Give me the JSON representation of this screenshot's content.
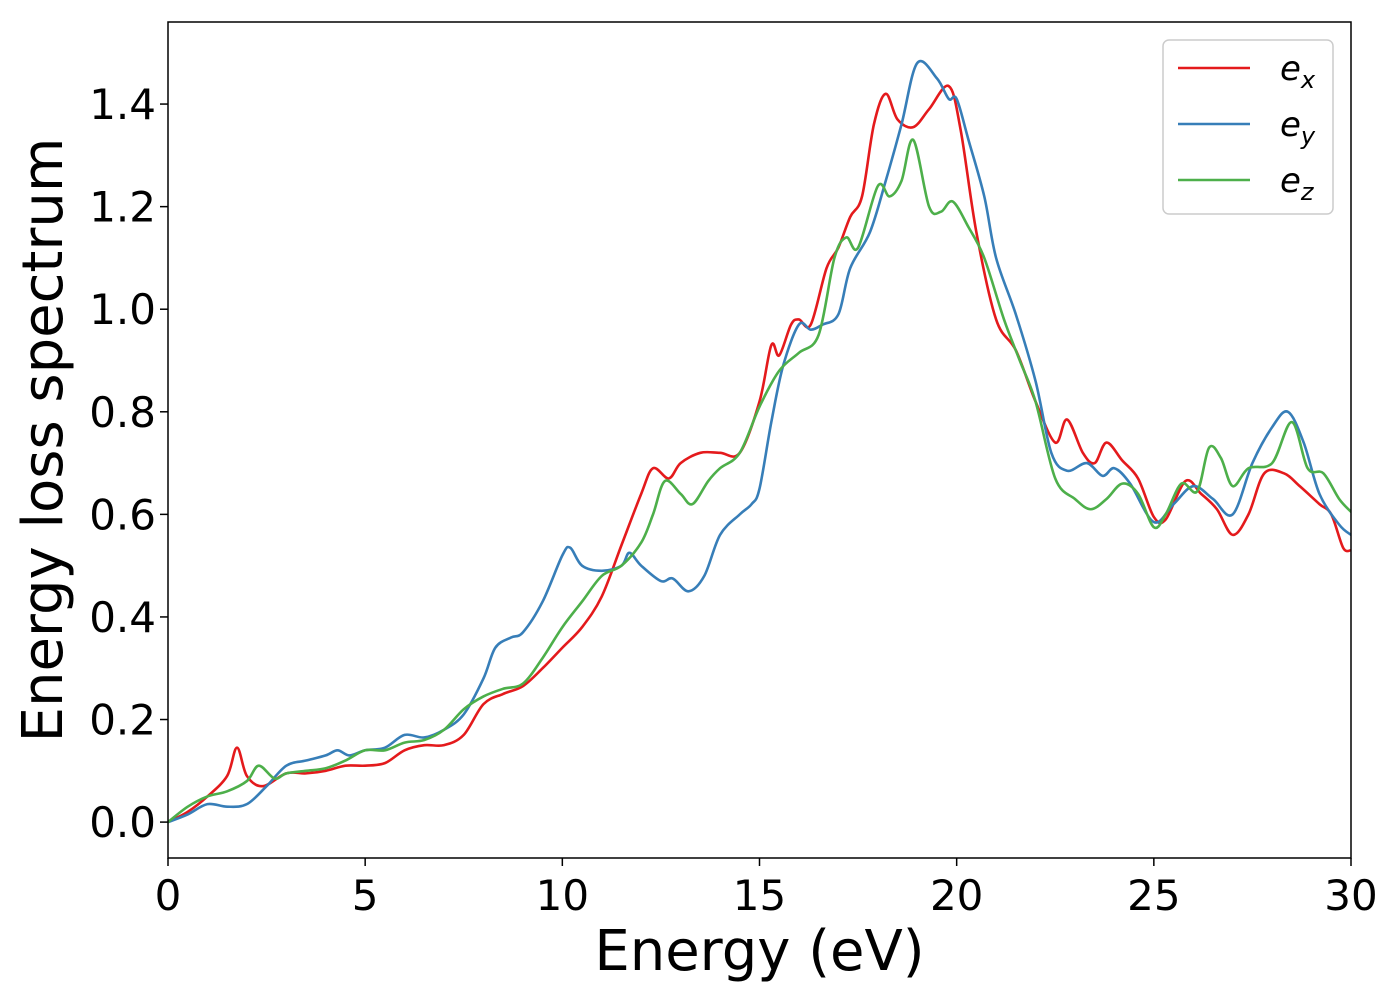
{
  "chart_data": {
    "type": "line",
    "title": "",
    "xlabel": "Energy (eV)",
    "ylabel": "Energy loss spectrum",
    "xlim": [
      0,
      30
    ],
    "ylim": [
      -0.07,
      1.56
    ],
    "xticks": [
      0,
      5,
      10,
      15,
      20,
      25,
      30
    ],
    "yticks": [
      0.0,
      0.2,
      0.4,
      0.6,
      0.8,
      1.0,
      1.2,
      1.4
    ],
    "xtick_labels": [
      "0",
      "5",
      "10",
      "15",
      "20",
      "25",
      "30"
    ],
    "ytick_labels": [
      "0.0",
      "0.2",
      "0.4",
      "0.6",
      "0.8",
      "1.0",
      "1.2",
      "1.4"
    ],
    "grid": false,
    "legend_position": "top-right",
    "series": [
      {
        "name": "e_x",
        "base": "e",
        "sub": "x",
        "color": "#e41a1c",
        "points": [
          [
            0,
            0
          ],
          [
            0.5,
            0.02
          ],
          [
            1,
            0.05
          ],
          [
            1.5,
            0.09
          ],
          [
            1.75,
            0.145
          ],
          [
            2,
            0.09
          ],
          [
            2.4,
            0.07
          ],
          [
            3,
            0.095
          ],
          [
            3.5,
            0.095
          ],
          [
            4,
            0.1
          ],
          [
            4.5,
            0.11
          ],
          [
            5,
            0.11
          ],
          [
            5.5,
            0.115
          ],
          [
            6,
            0.14
          ],
          [
            6.5,
            0.15
          ],
          [
            7,
            0.15
          ],
          [
            7.5,
            0.17
          ],
          [
            8,
            0.23
          ],
          [
            8.5,
            0.25
          ],
          [
            9,
            0.265
          ],
          [
            9.5,
            0.3
          ],
          [
            10,
            0.34
          ],
          [
            10.5,
            0.38
          ],
          [
            11,
            0.44
          ],
          [
            11.5,
            0.54
          ],
          [
            12,
            0.64
          ],
          [
            12.3,
            0.69
          ],
          [
            12.7,
            0.67
          ],
          [
            13,
            0.7
          ],
          [
            13.5,
            0.72
          ],
          [
            14,
            0.72
          ],
          [
            14.5,
            0.72
          ],
          [
            15,
            0.82
          ],
          [
            15.3,
            0.93
          ],
          [
            15.5,
            0.91
          ],
          [
            15.8,
            0.97
          ],
          [
            16,
            0.98
          ],
          [
            16.3,
            0.97
          ],
          [
            16.7,
            1.08
          ],
          [
            17,
            1.12
          ],
          [
            17.3,
            1.18
          ],
          [
            17.6,
            1.22
          ],
          [
            17.9,
            1.36
          ],
          [
            18.2,
            1.42
          ],
          [
            18.5,
            1.37
          ],
          [
            18.9,
            1.355
          ],
          [
            19.3,
            1.39
          ],
          [
            19.8,
            1.435
          ],
          [
            20.1,
            1.35
          ],
          [
            20.5,
            1.15
          ],
          [
            21,
            0.98
          ],
          [
            21.5,
            0.92
          ],
          [
            22,
            0.82
          ],
          [
            22.5,
            0.74
          ],
          [
            22.8,
            0.785
          ],
          [
            23.2,
            0.72
          ],
          [
            23.5,
            0.7
          ],
          [
            23.8,
            0.74
          ],
          [
            24.2,
            0.705
          ],
          [
            24.6,
            0.67
          ],
          [
            25,
            0.595
          ],
          [
            25.3,
            0.59
          ],
          [
            25.8,
            0.665
          ],
          [
            26.2,
            0.64
          ],
          [
            26.6,
            0.61
          ],
          [
            27,
            0.56
          ],
          [
            27.4,
            0.6
          ],
          [
            27.8,
            0.68
          ],
          [
            28.3,
            0.68
          ],
          [
            28.7,
            0.655
          ],
          [
            29.2,
            0.62
          ],
          [
            29.5,
            0.6
          ],
          [
            29.8,
            0.535
          ],
          [
            30,
            0.53
          ]
        ]
      },
      {
        "name": "e_y",
        "base": "e",
        "sub": "y",
        "color": "#377eb8",
        "points": [
          [
            0,
            0
          ],
          [
            0.5,
            0.015
          ],
          [
            1,
            0.035
          ],
          [
            1.5,
            0.03
          ],
          [
            2,
            0.035
          ],
          [
            2.5,
            0.07
          ],
          [
            3,
            0.11
          ],
          [
            3.5,
            0.12
          ],
          [
            4,
            0.13
          ],
          [
            4.3,
            0.14
          ],
          [
            4.6,
            0.13
          ],
          [
            5,
            0.14
          ],
          [
            5.5,
            0.145
          ],
          [
            6,
            0.17
          ],
          [
            6.5,
            0.165
          ],
          [
            7,
            0.18
          ],
          [
            7.5,
            0.21
          ],
          [
            8,
            0.28
          ],
          [
            8.3,
            0.34
          ],
          [
            8.7,
            0.36
          ],
          [
            9,
            0.37
          ],
          [
            9.5,
            0.43
          ],
          [
            10,
            0.52
          ],
          [
            10.2,
            0.535
          ],
          [
            10.5,
            0.5
          ],
          [
            11,
            0.49
          ],
          [
            11.5,
            0.5
          ],
          [
            11.7,
            0.525
          ],
          [
            12,
            0.5
          ],
          [
            12.5,
            0.47
          ],
          [
            12.8,
            0.475
          ],
          [
            13.2,
            0.45
          ],
          [
            13.6,
            0.48
          ],
          [
            14,
            0.56
          ],
          [
            14.5,
            0.6
          ],
          [
            14.8,
            0.62
          ],
          [
            15,
            0.65
          ],
          [
            15.3,
            0.78
          ],
          [
            15.6,
            0.89
          ],
          [
            16,
            0.97
          ],
          [
            16.3,
            0.96
          ],
          [
            16.6,
            0.97
          ],
          [
            17,
            0.99
          ],
          [
            17.3,
            1.08
          ],
          [
            17.8,
            1.15
          ],
          [
            18.2,
            1.25
          ],
          [
            18.6,
            1.36
          ],
          [
            19,
            1.48
          ],
          [
            19.5,
            1.45
          ],
          [
            19.8,
            1.41
          ],
          [
            20,
            1.41
          ],
          [
            20.3,
            1.33
          ],
          [
            20.7,
            1.22
          ],
          [
            21,
            1.1
          ],
          [
            21.5,
            0.99
          ],
          [
            22,
            0.86
          ],
          [
            22.4,
            0.72
          ],
          [
            22.8,
            0.685
          ],
          [
            23.3,
            0.7
          ],
          [
            23.7,
            0.675
          ],
          [
            24,
            0.69
          ],
          [
            24.4,
            0.66
          ],
          [
            25,
            0.585
          ],
          [
            25.5,
            0.62
          ],
          [
            26,
            0.655
          ],
          [
            26.5,
            0.63
          ],
          [
            27,
            0.6
          ],
          [
            27.5,
            0.7
          ],
          [
            28,
            0.77
          ],
          [
            28.4,
            0.8
          ],
          [
            28.8,
            0.74
          ],
          [
            29.2,
            0.64
          ],
          [
            29.7,
            0.58
          ],
          [
            30,
            0.56
          ]
        ]
      },
      {
        "name": "e_z",
        "base": "e",
        "sub": "z",
        "color": "#4daf4a",
        "points": [
          [
            0,
            0
          ],
          [
            0.5,
            0.03
          ],
          [
            1,
            0.05
          ],
          [
            1.5,
            0.06
          ],
          [
            2,
            0.08
          ],
          [
            2.3,
            0.11
          ],
          [
            2.7,
            0.085
          ],
          [
            3,
            0.095
          ],
          [
            3.5,
            0.1
          ],
          [
            4,
            0.105
          ],
          [
            4.5,
            0.12
          ],
          [
            5,
            0.14
          ],
          [
            5.5,
            0.14
          ],
          [
            6,
            0.155
          ],
          [
            6.5,
            0.16
          ],
          [
            7,
            0.18
          ],
          [
            7.5,
            0.22
          ],
          [
            8,
            0.245
          ],
          [
            8.5,
            0.26
          ],
          [
            9,
            0.27
          ],
          [
            9.5,
            0.32
          ],
          [
            10,
            0.38
          ],
          [
            10.5,
            0.43
          ],
          [
            11,
            0.48
          ],
          [
            11.5,
            0.5
          ],
          [
            12,
            0.545
          ],
          [
            12.3,
            0.6
          ],
          [
            12.6,
            0.665
          ],
          [
            13,
            0.64
          ],
          [
            13.3,
            0.62
          ],
          [
            13.7,
            0.665
          ],
          [
            14,
            0.69
          ],
          [
            14.5,
            0.72
          ],
          [
            15,
            0.81
          ],
          [
            15.5,
            0.88
          ],
          [
            16,
            0.915
          ],
          [
            16.5,
            0.95
          ],
          [
            16.9,
            1.1
          ],
          [
            17.2,
            1.14
          ],
          [
            17.5,
            1.12
          ],
          [
            18,
            1.24
          ],
          [
            18.3,
            1.22
          ],
          [
            18.6,
            1.25
          ],
          [
            18.9,
            1.33
          ],
          [
            19.3,
            1.2
          ],
          [
            19.6,
            1.19
          ],
          [
            19.9,
            1.21
          ],
          [
            20.3,
            1.16
          ],
          [
            20.7,
            1.1
          ],
          [
            21.2,
            0.98
          ],
          [
            21.6,
            0.9
          ],
          [
            22,
            0.82
          ],
          [
            22.5,
            0.67
          ],
          [
            23,
            0.63
          ],
          [
            23.4,
            0.61
          ],
          [
            23.8,
            0.63
          ],
          [
            24.2,
            0.66
          ],
          [
            24.6,
            0.64
          ],
          [
            25,
            0.575
          ],
          [
            25.3,
            0.6
          ],
          [
            25.7,
            0.66
          ],
          [
            26.1,
            0.645
          ],
          [
            26.4,
            0.73
          ],
          [
            26.7,
            0.71
          ],
          [
            27,
            0.655
          ],
          [
            27.4,
            0.69
          ],
          [
            28,
            0.7
          ],
          [
            28.5,
            0.78
          ],
          [
            28.9,
            0.69
          ],
          [
            29.3,
            0.68
          ],
          [
            29.7,
            0.63
          ],
          [
            30,
            0.605
          ]
        ]
      }
    ]
  }
}
